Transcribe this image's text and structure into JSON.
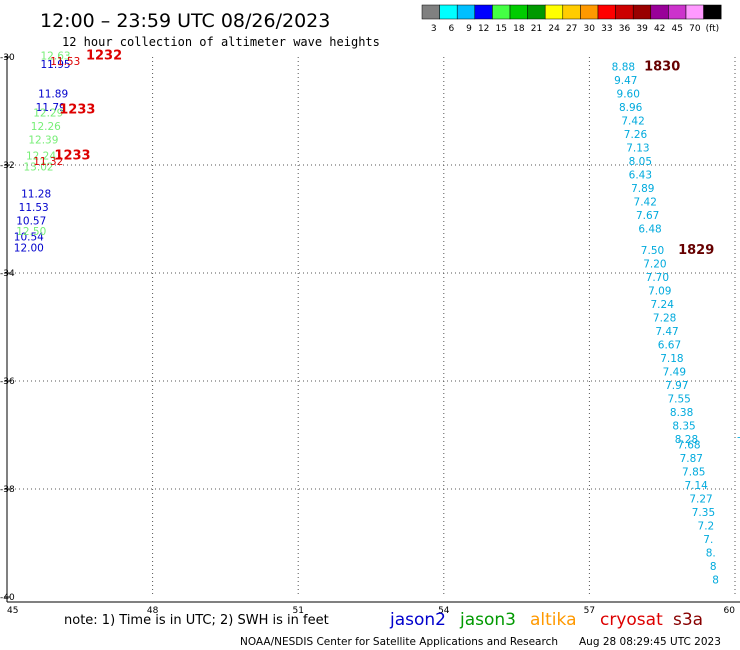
{
  "header": {
    "title": "12:00 – 23:59 UTC 08/26/2023",
    "subtitle": "12 hour collection of altimeter wave heights"
  },
  "colorbar": {
    "colors": [
      "#808080",
      "#00ffff",
      "#00bfff",
      "#0000ff",
      "#44ff44",
      "#00cc00",
      "#009900",
      "#ffff00",
      "#ffcc00",
      "#ff9900",
      "#ff0000",
      "#cc0000",
      "#990000",
      "#990099",
      "#cc33cc",
      "#ff99ff",
      "#000000"
    ],
    "labels": [
      "3",
      "6",
      "9",
      "12",
      "15",
      "18",
      "21",
      "24",
      "27",
      "30",
      "33",
      "36",
      "39",
      "42",
      "45",
      "70",
      "(ft)"
    ]
  },
  "chart_data": {
    "type": "scatter",
    "xlim": [
      45,
      60
    ],
    "ylim": [
      -40,
      -30
    ],
    "x_ticks": [
      "45",
      "48",
      "51",
      "54",
      "57",
      "60"
    ],
    "y_ticks": [
      "-30",
      "-32",
      "-34",
      "-36",
      "-38",
      "-40"
    ],
    "grid": true,
    "series": [
      {
        "name": "jason2",
        "color": "#0000cc",
        "points": [
          {
            "lon": 46.0,
            "lat": -30.2,
            "label": "11.95"
          },
          {
            "lon": 45.95,
            "lat": -30.75,
            "label": "11.89"
          },
          {
            "lon": 45.9,
            "lat": -31.0,
            "label": "11.79"
          },
          {
            "lon": 45.6,
            "lat": -32.6,
            "label": "11.28"
          },
          {
            "lon": 45.55,
            "lat": -32.85,
            "label": "11.53"
          },
          {
            "lon": 45.5,
            "lat": -33.1,
            "label": "10.57"
          },
          {
            "lon": 45.45,
            "lat": -33.4,
            "label": "10.54"
          },
          {
            "lon": 45.45,
            "lat": -33.6,
            "label": "12.00"
          }
        ],
        "time_labels": []
      },
      {
        "name": "jason3",
        "color": "#77ee77",
        "points": [
          {
            "lon": 46.0,
            "lat": -30.05,
            "label": "12.63"
          },
          {
            "lon": 45.85,
            "lat": -31.1,
            "label": "12.29"
          },
          {
            "lon": 45.8,
            "lat": -31.35,
            "label": "12.26"
          },
          {
            "lon": 45.75,
            "lat": -31.6,
            "label": "12.39"
          },
          {
            "lon": 45.7,
            "lat": -31.9,
            "label": "12.24"
          },
          {
            "lon": 45.65,
            "lat": -32.1,
            "label": "13.02"
          },
          {
            "lon": 45.5,
            "lat": -33.3,
            "label": "12.50"
          }
        ],
        "time_labels": []
      },
      {
        "name": "altika",
        "color": "#ff9900",
        "points": [],
        "time_labels": []
      },
      {
        "name": "cryosat",
        "color": "#dd0000",
        "points": [
          {
            "lon": 46.2,
            "lat": -30.15,
            "label": "11.53"
          },
          {
            "lon": 45.85,
            "lat": -32.0,
            "label": "11.32"
          }
        ],
        "time_labels": [
          {
            "lon": 47.0,
            "lat": -30.05,
            "label": "1232"
          },
          {
            "lon": 46.45,
            "lat": -31.05,
            "label": "1233"
          },
          {
            "lon": 46.35,
            "lat": -31.9,
            "label": "1233"
          }
        ]
      },
      {
        "name": "s3a",
        "color": "#00aadd",
        "points": [
          {
            "lon": 57.7,
            "lat": -30.25,
            "label": "8.88"
          },
          {
            "lon": 57.75,
            "lat": -30.5,
            "label": "9.47"
          },
          {
            "lon": 57.8,
            "lat": -30.75,
            "label": "9.60"
          },
          {
            "lon": 57.85,
            "lat": -31.0,
            "label": "8.96"
          },
          {
            "lon": 57.9,
            "lat": -31.25,
            "label": "7.42"
          },
          {
            "lon": 57.95,
            "lat": -31.5,
            "label": "7.26"
          },
          {
            "lon": 58.0,
            "lat": -31.75,
            "label": "7.13"
          },
          {
            "lon": 58.05,
            "lat": -32.0,
            "label": "8.05"
          },
          {
            "lon": 58.05,
            "lat": -32.25,
            "label": "6.43"
          },
          {
            "lon": 58.1,
            "lat": -32.5,
            "label": "7.89"
          },
          {
            "lon": 58.15,
            "lat": -32.75,
            "label": "7.42"
          },
          {
            "lon": 58.2,
            "lat": -33.0,
            "label": "7.67"
          },
          {
            "lon": 58.25,
            "lat": -33.25,
            "label": "6.48"
          },
          {
            "lon": 58.3,
            "lat": -33.65,
            "label": "7.50"
          },
          {
            "lon": 58.35,
            "lat": -33.9,
            "label": "7.20"
          },
          {
            "lon": 58.4,
            "lat": -34.15,
            "label": "7.70"
          },
          {
            "lon": 58.45,
            "lat": -34.4,
            "label": "7.09"
          },
          {
            "lon": 58.5,
            "lat": -34.65,
            "label": "7.24"
          },
          {
            "lon": 58.55,
            "lat": -34.9,
            "label": "7.28"
          },
          {
            "lon": 58.6,
            "lat": -35.15,
            "label": "7.47"
          },
          {
            "lon": 58.65,
            "lat": -35.4,
            "label": "6.67"
          },
          {
            "lon": 58.7,
            "lat": -35.65,
            "label": "7.18"
          },
          {
            "lon": 58.75,
            "lat": -35.9,
            "label": "7.49"
          },
          {
            "lon": 58.8,
            "lat": -36.15,
            "label": "7.97"
          },
          {
            "lon": 58.85,
            "lat": -36.4,
            "label": "7.55"
          },
          {
            "lon": 58.9,
            "lat": -36.65,
            "label": "8.38"
          },
          {
            "lon": 58.95,
            "lat": -36.9,
            "label": "8.35"
          },
          {
            "lon": 59.0,
            "lat": -37.15,
            "label": "8.28"
          },
          {
            "lon": 59.05,
            "lat": -37.25,
            "label": "7.68"
          },
          {
            "lon": 59.1,
            "lat": -37.5,
            "label": "7.87"
          },
          {
            "lon": 59.15,
            "lat": -37.75,
            "label": "7.85"
          },
          {
            "lon": 59.2,
            "lat": -38.0,
            "label": "7.14"
          },
          {
            "lon": 59.3,
            "lat": -38.25,
            "label": "7.27"
          },
          {
            "lon": 59.35,
            "lat": -38.5,
            "label": "7.35"
          },
          {
            "lon": 59.4,
            "lat": -38.75,
            "label": "7.2"
          },
          {
            "lon": 59.45,
            "lat": -39.0,
            "label": "7."
          },
          {
            "lon": 59.5,
            "lat": -39.25,
            "label": "8."
          },
          {
            "lon": 59.55,
            "lat": -39.5,
            "label": "8"
          },
          {
            "lon": 59.6,
            "lat": -39.75,
            "label": "8"
          }
        ],
        "time_labels": [
          {
            "lon": 58.5,
            "lat": -30.25,
            "label": "1830"
          },
          {
            "lon": 59.2,
            "lat": -33.65,
            "label": "1829"
          }
        ]
      }
    ]
  },
  "footer": {
    "note": "note: 1) Time is in UTC; 2) SWH is in feet",
    "credit": "NOAA/NESDIS Center for Satellite Applications and Research",
    "timestamp": "Aug 28 08:29:45 UTC 2023"
  }
}
